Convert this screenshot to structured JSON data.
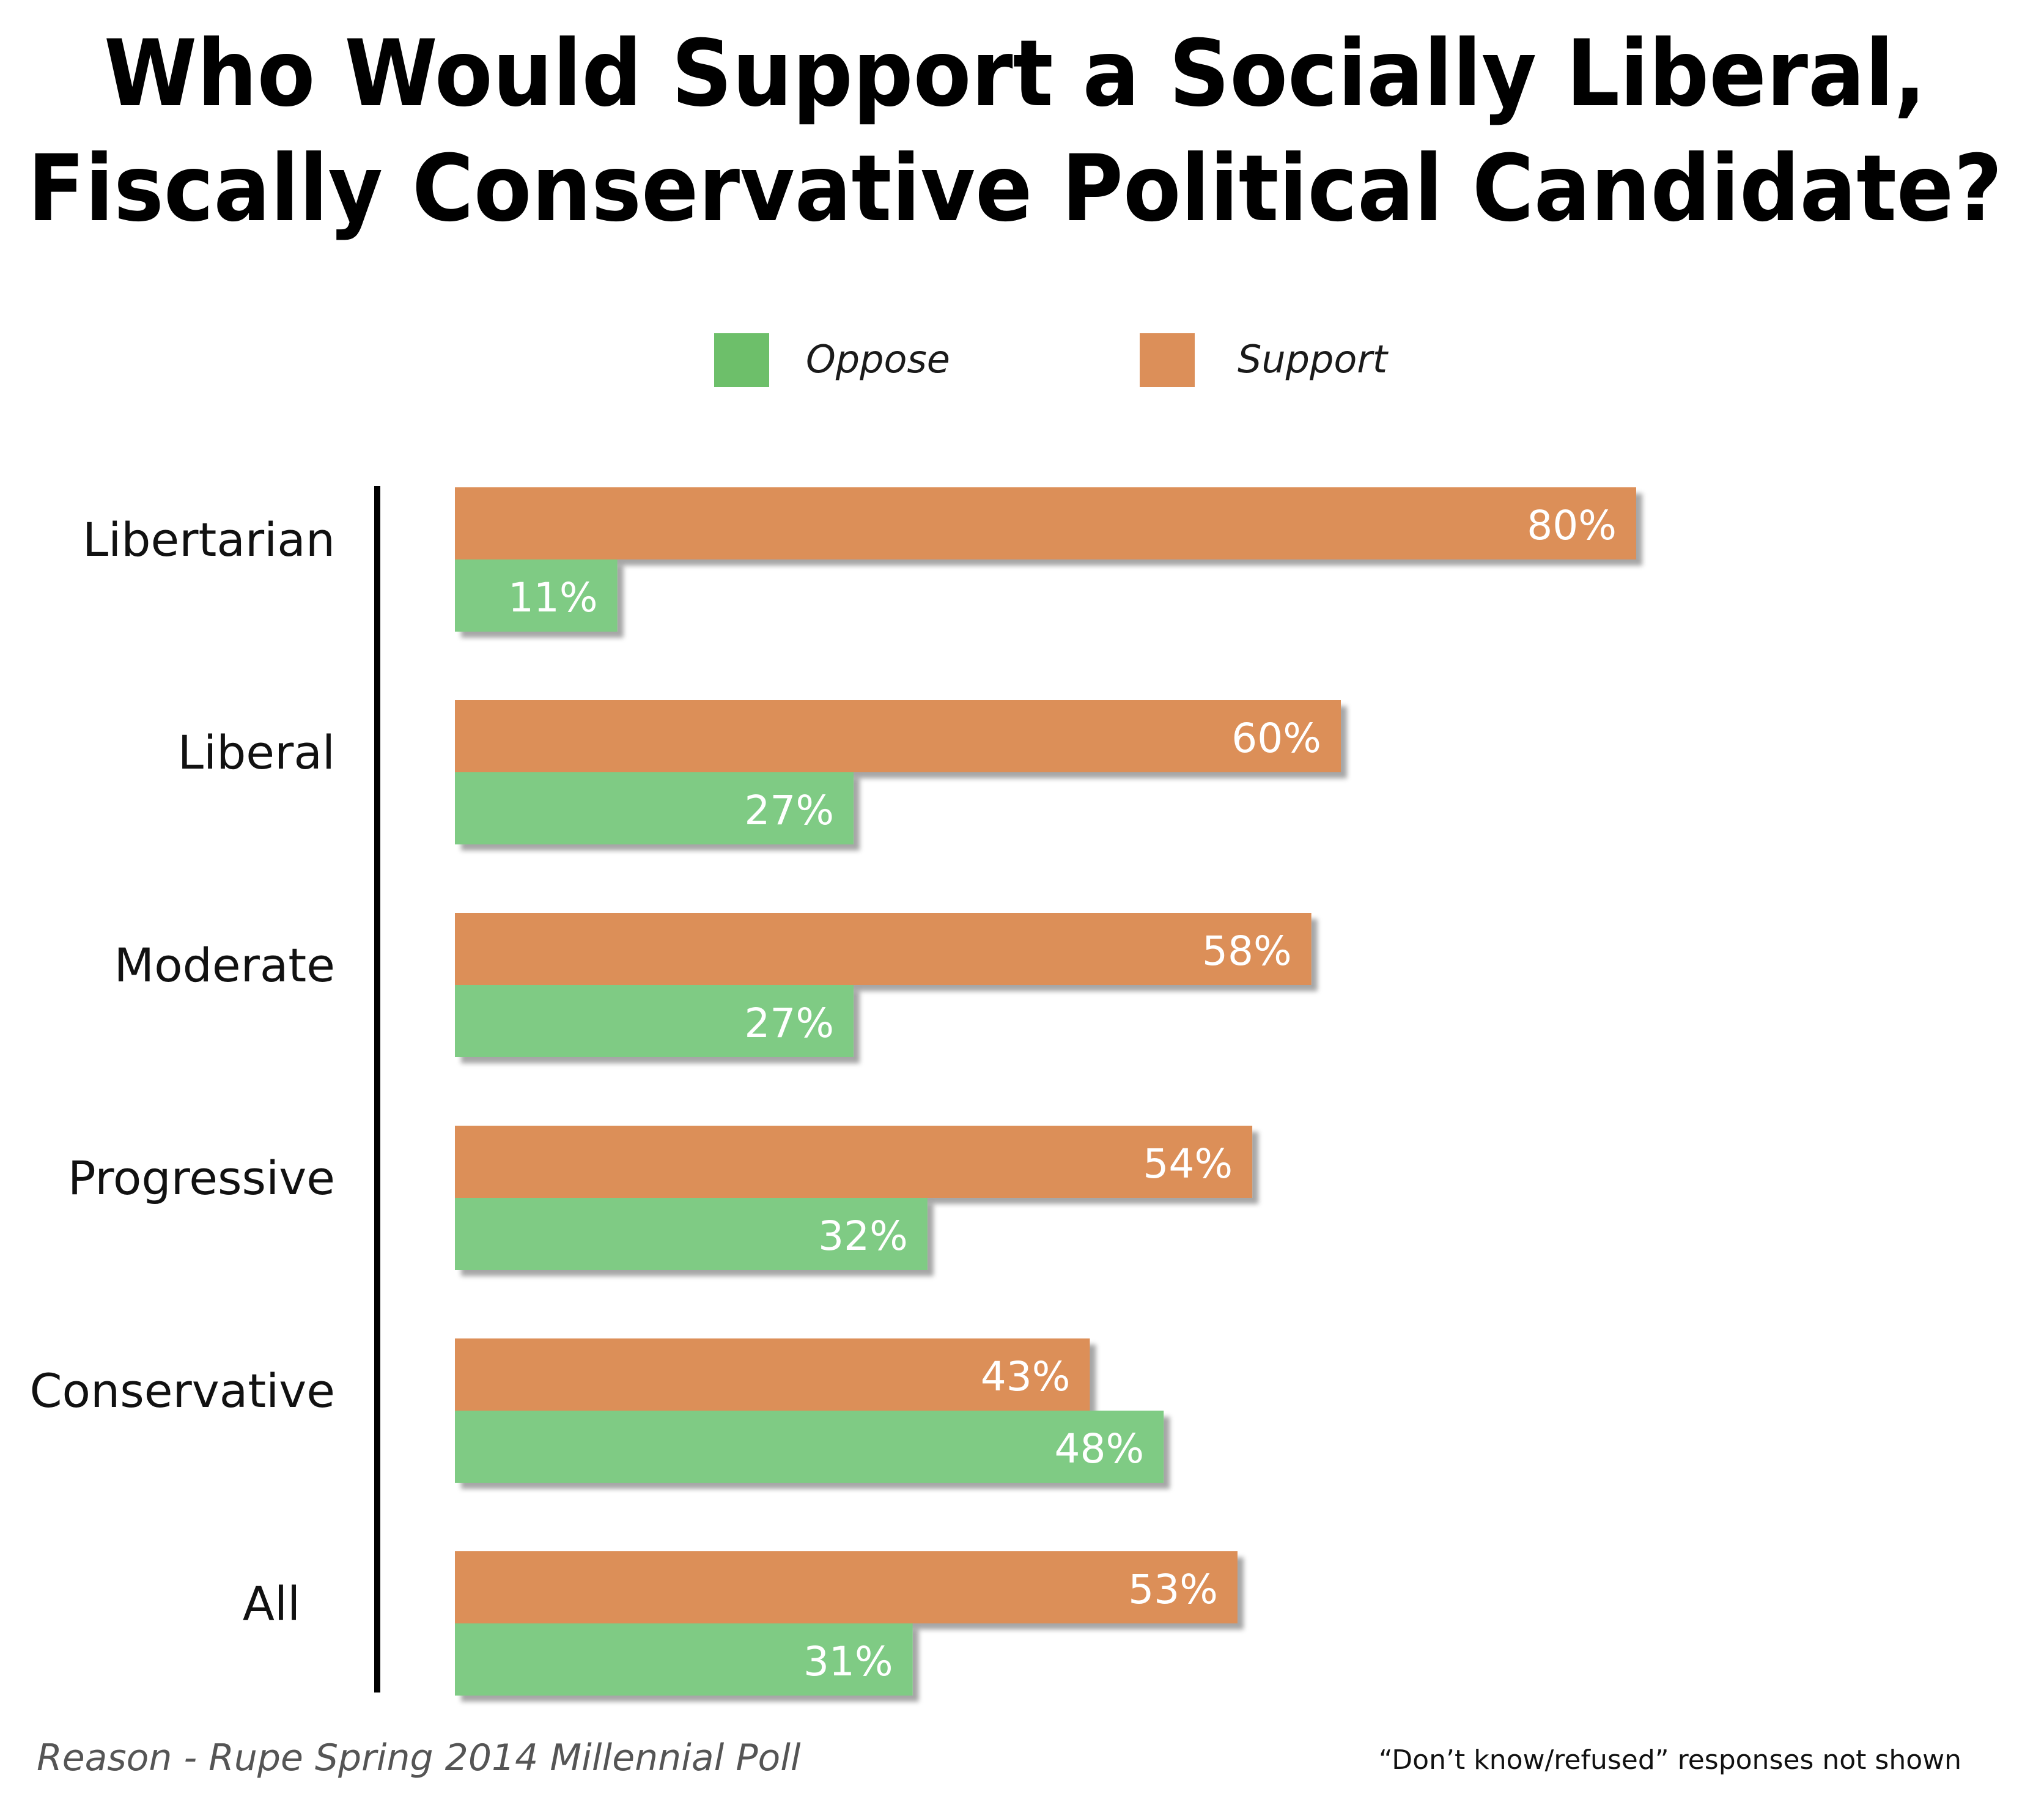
{
  "chart_data": {
    "type": "bar",
    "orientation": "horizontal",
    "title": "Who Would Support a Socially Liberal, Fiscally Conservative Political Candidate?",
    "title_lines": [
      "Who Would Support a Socially Liberal,",
      "Fiscally Conservative Political Candidate?"
    ],
    "categories": [
      "Libertarian",
      "Liberal",
      "Moderate",
      "Progressive",
      "Conservative",
      "All"
    ],
    "series": [
      {
        "name": "Support",
        "color": "#DC8F59",
        "values": [
          80,
          60,
          58,
          54,
          43,
          53
        ],
        "labels": [
          "80%",
          "60%",
          "58%",
          "54%",
          "43%",
          "53%"
        ]
      },
      {
        "name": "Oppose",
        "color": "#7FCB84",
        "values": [
          11,
          27,
          27,
          32,
          48,
          31
        ],
        "labels": [
          "11%",
          "27%",
          "27%",
          "32%",
          "48%",
          "31%"
        ]
      }
    ],
    "legend": {
      "position": "top-center",
      "items": [
        {
          "name": "Oppose",
          "color": "#6DBF6A"
        },
        {
          "name": "Support",
          "color": "#DC8F59"
        }
      ]
    },
    "xlim": [
      0,
      100
    ],
    "grid": false,
    "source": "Reason - Rupe Spring 2014 Millennial Poll",
    "note": "“Don’t know/refused” responses not shown"
  }
}
